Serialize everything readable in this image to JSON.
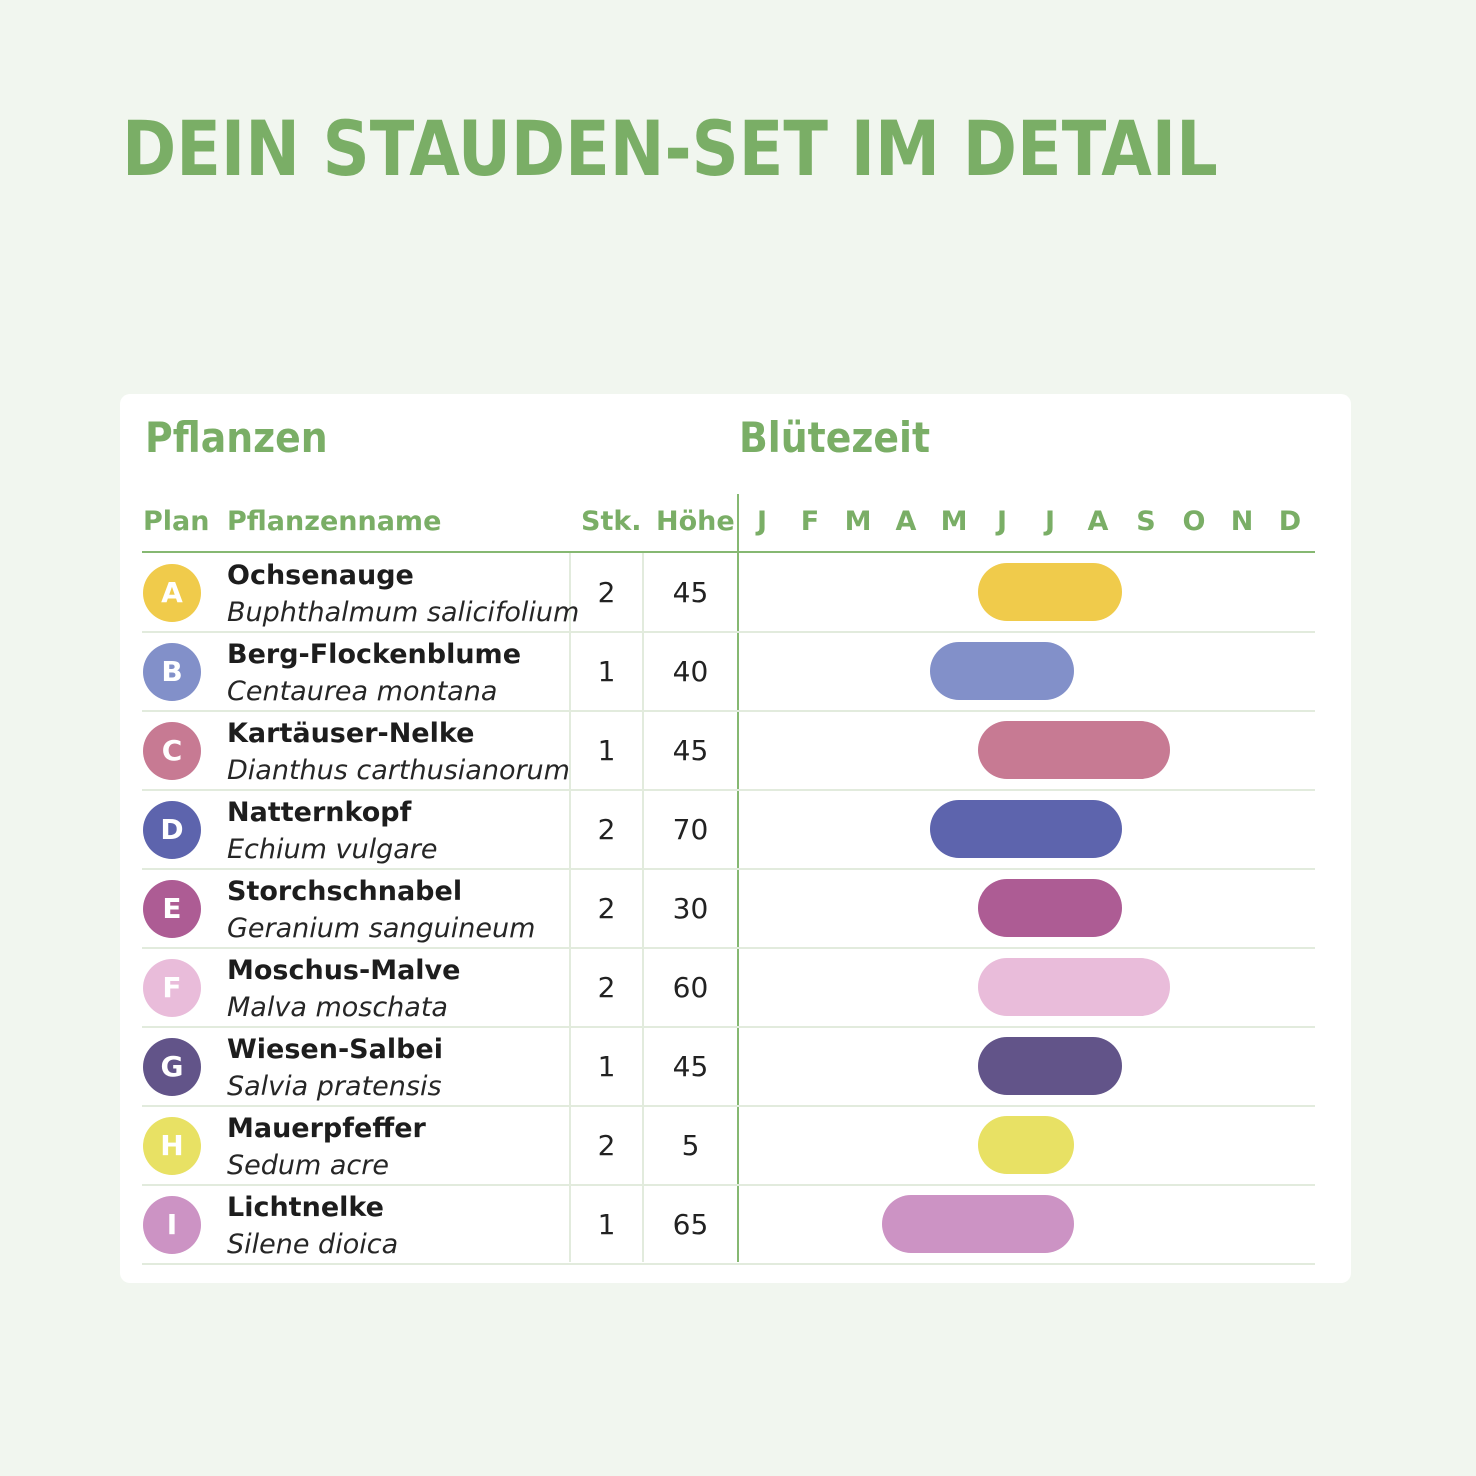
{
  "page": {
    "title": "DEIN STAUDEN-SET IM DETAIL"
  },
  "table": {
    "section_plants": "Pflanzen",
    "section_bloom": "Blütezeit",
    "columns": {
      "plan": "Plan",
      "name": "Pflanzenname",
      "count": "Stk.",
      "height": "Höhe"
    },
    "months": [
      "J",
      "F",
      "M",
      "A",
      "M",
      "J",
      "J",
      "A",
      "S",
      "O",
      "N",
      "D"
    ]
  },
  "chart_data": {
    "type": "table",
    "bloom_unit": "month index (1 = January, 12 = December)",
    "rows": [
      {
        "plan": "A",
        "common": "Ochsenauge",
        "latin": "Buphthalmum salicifolium",
        "count": "2",
        "height": "45",
        "color": "#f0cb4b",
        "bloom_start": 6,
        "bloom_end": 8
      },
      {
        "plan": "B",
        "common": "Berg-Flockenblume",
        "latin": "Centaurea montana",
        "count": "1",
        "height": "40",
        "color": "#8290c9",
        "bloom_start": 5,
        "bloom_end": 7
      },
      {
        "plan": "C",
        "common": "Kartäuser-Nelke",
        "latin": "Dianthus carthusianorum",
        "count": "1",
        "height": "45",
        "color": "#c77a93",
        "bloom_start": 6,
        "bloom_end": 9
      },
      {
        "plan": "D",
        "common": "Natternkopf",
        "latin": "Echium vulgare",
        "count": "2",
        "height": "70",
        "color": "#5d64ad",
        "bloom_start": 5,
        "bloom_end": 8
      },
      {
        "plan": "E",
        "common": "Storchschnabel",
        "latin": "Geranium sanguineum",
        "count": "2",
        "height": "30",
        "color": "#ad5c94",
        "bloom_start": 6,
        "bloom_end": 8
      },
      {
        "plan": "F",
        "common": "Moschus-Malve",
        "latin": "Malva moschata",
        "count": "2",
        "height": "60",
        "color": "#e9bcda",
        "bloom_start": 6,
        "bloom_end": 9
      },
      {
        "plan": "G",
        "common": "Wiesen-Salbei",
        "latin": "Salvia pratensis",
        "count": "1",
        "height": "45",
        "color": "#625489",
        "bloom_start": 6,
        "bloom_end": 8
      },
      {
        "plan": "H",
        "common": "Mauerpfeffer",
        "latin": "Sedum acre",
        "count": "2",
        "height": "5",
        "color": "#e8e164",
        "bloom_start": 6,
        "bloom_end": 7
      },
      {
        "plan": "I",
        "common": "Lichtnelke",
        "latin": "Silene dioica",
        "count": "1",
        "height": "65",
        "color": "#cc93c4",
        "bloom_start": 4,
        "bloom_end": 7
      }
    ]
  }
}
